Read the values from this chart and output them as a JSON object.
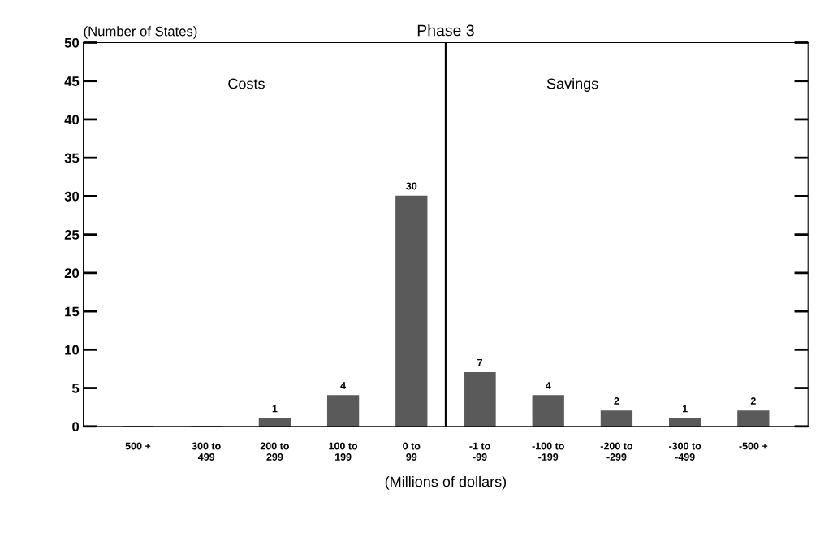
{
  "chart_data": {
    "type": "bar",
    "title": "Phase 3",
    "xlabel": "(Millions of dollars)",
    "ylabel": "(Number of States)",
    "categories": [
      "500 +",
      "300 to\n499",
      "200 to\n299",
      "100 to\n199",
      "0 to\n99",
      "-1 to\n-99",
      "-100 to\n-199",
      "-200 to\n-299",
      "-300 to\n-499",
      "-500 +"
    ],
    "values": [
      0,
      0,
      1,
      4,
      30,
      7,
      4,
      2,
      1,
      2
    ],
    "value_labels": [
      null,
      null,
      "1",
      "4",
      "30",
      "7",
      "4",
      "2",
      "1",
      "2"
    ],
    "color": "#5a5a5a",
    "ylim": [
      0,
      50
    ],
    "yticks": [
      0,
      5,
      10,
      15,
      20,
      25,
      30,
      35,
      40,
      45,
      50
    ],
    "annotations": [
      "Costs",
      "Savings"
    ],
    "grid": false,
    "legend": false
  }
}
